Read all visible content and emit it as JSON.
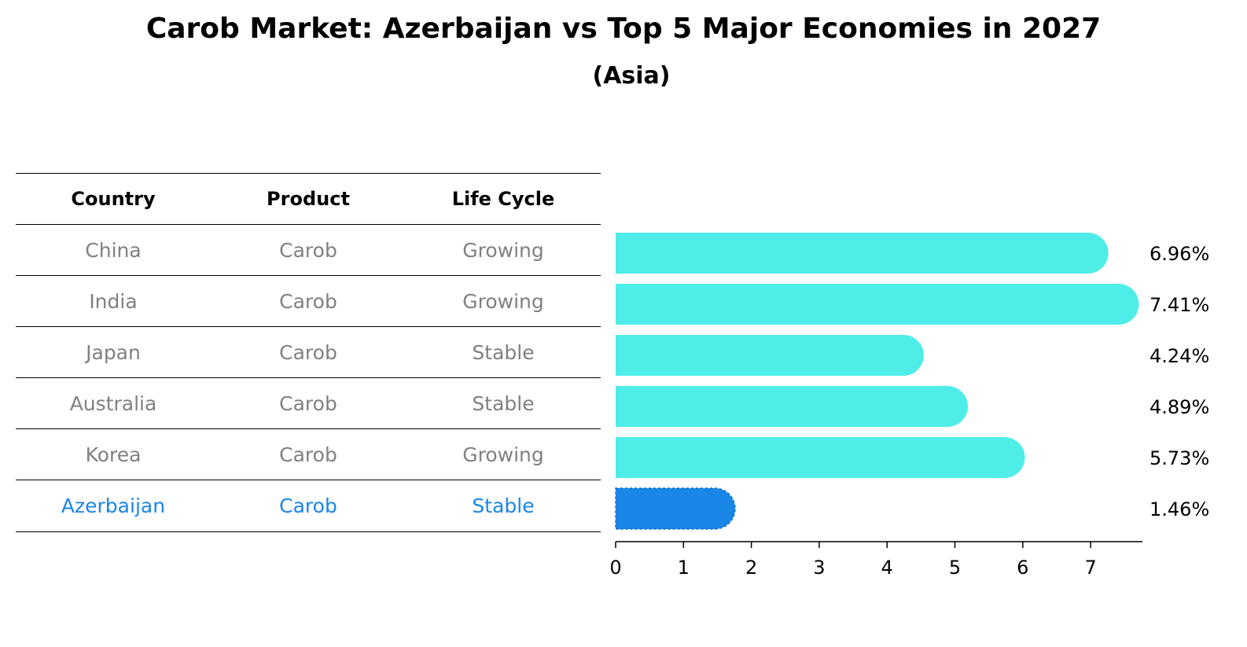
{
  "title": "Carob Market: Azerbaijan vs Top 5 Major Economies in 2027",
  "subtitle": "(Asia)",
  "table": {
    "headers": [
      "Country",
      "Product",
      "Life Cycle"
    ],
    "rows": [
      [
        "China",
        "Carob",
        "Growing"
      ],
      [
        "India",
        "Carob",
        "Growing"
      ],
      [
        "Japan",
        "Carob",
        "Stable"
      ],
      [
        "Australia",
        "Carob",
        "Stable"
      ],
      [
        "Korea",
        "Carob",
        "Growing"
      ],
      [
        "Azerbaijan",
        "Carob",
        "Stable"
      ]
    ]
  },
  "colors": {
    "bar": "#4eede8",
    "highlight": "#1a86e8",
    "muted_text": "#808080"
  },
  "chart_data": {
    "type": "bar",
    "orientation": "horizontal",
    "categories": [
      "China",
      "India",
      "Japan",
      "Australia",
      "Korea",
      "Azerbaijan"
    ],
    "values": [
      6.96,
      7.41,
      4.24,
      4.89,
      5.73,
      1.46
    ],
    "value_labels": [
      "6.96%",
      "7.41%",
      "4.24%",
      "4.89%",
      "5.73%",
      "1.46%"
    ],
    "highlight": "Azerbaijan",
    "x_ticks": [
      "0",
      "1",
      "2",
      "3",
      "4",
      "5",
      "6",
      "7"
    ],
    "xlim": [
      0,
      7.8
    ],
    "xlabel": "",
    "ylabel": "",
    "grid": false
  }
}
